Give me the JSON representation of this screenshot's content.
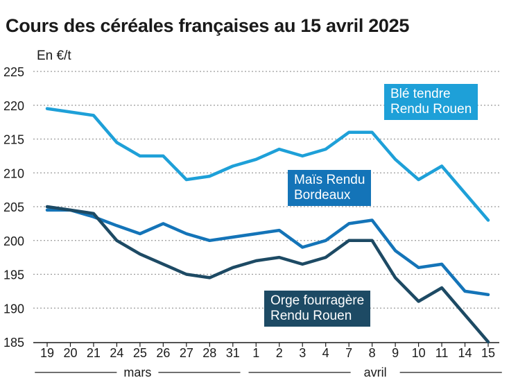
{
  "title": "Cours des céréales françaises au 15 avril 2025",
  "chart_data": {
    "type": "line",
    "title": "Cours des céréales françaises au 15 avril 2025",
    "ylabel": "En €/t",
    "xlabel": "",
    "ylim": [
      185,
      225
    ],
    "yticks": [
      185,
      190,
      195,
      200,
      205,
      210,
      215,
      220,
      225
    ],
    "grid": true,
    "categories": [
      "19",
      "20",
      "21",
      "24",
      "25",
      "26",
      "27",
      "28",
      "31",
      "1",
      "2",
      "3",
      "4",
      "7",
      "8",
      "9",
      "10",
      "11",
      "14",
      "15"
    ],
    "months": [
      {
        "label": "mars",
        "from": 0,
        "to": 8
      },
      {
        "label": "avril",
        "from": 9,
        "to": 19
      }
    ],
    "series": [
      {
        "name": "Blé tendre Rendu Rouen",
        "label_lines": [
          "Blé tendre",
          "Rendu Rouen"
        ],
        "color": "#1ea0d8",
        "values": [
          219.5,
          219,
          218.5,
          214.5,
          212.5,
          212.5,
          209,
          209.5,
          211,
          212,
          213.5,
          212.5,
          213.5,
          216,
          216,
          212,
          209,
          211,
          207,
          203
        ]
      },
      {
        "name": "Maïs Rendu Bordeaux",
        "label_lines": [
          "Maïs Rendu",
          "Bordeaux"
        ],
        "color": "#1474b8",
        "values": [
          204.5,
          204.5,
          203.5,
          202.2,
          201,
          202.5,
          201,
          200,
          200.5,
          201,
          201.5,
          199,
          200,
          202.5,
          203,
          198.5,
          196,
          196.5,
          192.5,
          192
        ]
      },
      {
        "name": "Orge fourragère Rendu Rouen",
        "label_lines": [
          "Orge fourragère",
          "Rendu Rouen"
        ],
        "color": "#1d4a64",
        "values": [
          205,
          204.5,
          204,
          200,
          198,
          196.5,
          195,
          194.5,
          196,
          197,
          197.5,
          196.5,
          197.5,
          200,
          200,
          194.5,
          191,
          193,
          189,
          185
        ]
      }
    ]
  }
}
